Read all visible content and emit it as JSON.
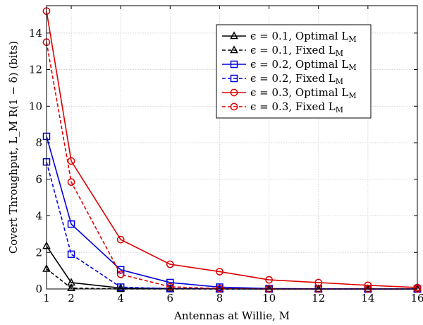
{
  "chart_data": {
    "type": "line",
    "xlabel": "Antennas at Willie, M",
    "ylabel": "Covert Throughput, L_M R(1 − δ) (bits)",
    "xlim": [
      1,
      16
    ],
    "ylim": [
      0,
      15.5
    ],
    "xticks": [
      1,
      2,
      4,
      6,
      8,
      10,
      12,
      14,
      16
    ],
    "yticks": [
      0,
      2,
      4,
      6,
      8,
      10,
      12,
      14
    ],
    "grid": true,
    "legend_position": "top-right",
    "x": [
      1,
      2,
      4,
      6,
      8,
      10,
      12,
      14,
      16
    ],
    "series": [
      {
        "name": "ϵ = 0.1, Optimal L_M",
        "color": "#000000",
        "dash": "solid",
        "marker": "triangle",
        "values": [
          2.35,
          0.35,
          0.05,
          0.02,
          0.01,
          0.0,
          0.0,
          0.0,
          0.0
        ]
      },
      {
        "name": "ϵ = 0.1, Fixed L_M",
        "color": "#000000",
        "dash": "dashed",
        "marker": "triangle",
        "values": [
          1.1,
          0.05,
          0.0,
          0.0,
          0.0,
          0.0,
          0.0,
          0.0,
          0.0
        ]
      },
      {
        "name": "ϵ = 0.2, Optimal L_M",
        "color": "#0000dd",
        "dash": "solid",
        "marker": "square",
        "values": [
          8.35,
          3.55,
          1.05,
          0.35,
          0.1,
          0.02,
          0.01,
          0.0,
          0.0
        ]
      },
      {
        "name": "ϵ = 0.2, Fixed L_M",
        "color": "#0000dd",
        "dash": "dashed",
        "marker": "square",
        "values": [
          6.95,
          1.9,
          0.1,
          0.02,
          0.0,
          0.0,
          0.0,
          0.0,
          0.0
        ]
      },
      {
        "name": "ϵ = 0.3, Optimal L_M",
        "color": "#dd0000",
        "dash": "solid",
        "marker": "circle",
        "values": [
          15.2,
          7.0,
          2.7,
          1.35,
          0.95,
          0.5,
          0.35,
          0.2,
          0.08
        ]
      },
      {
        "name": "ϵ = 0.3, Fixed L_M",
        "color": "#dd0000",
        "dash": "dashed",
        "marker": "circle",
        "values": [
          13.5,
          5.85,
          0.8,
          0.12,
          0.02,
          0.0,
          0.0,
          0.0,
          0.0
        ]
      }
    ]
  }
}
